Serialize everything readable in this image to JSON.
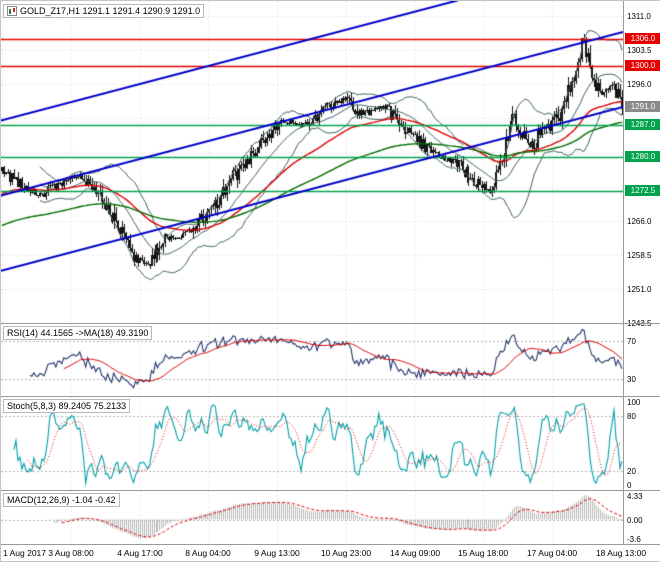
{
  "window": {
    "title": "GOLD_Z17,H1 1291.1 1291.4 1290.9 1291.0"
  },
  "colors": {
    "background": "#ffffff",
    "grid": "#d6d6d6",
    "separator": "#9a9a9a",
    "candle": "#161616",
    "bollinger": "#3a6060",
    "ma_fast": "#dd0000",
    "ma_slow": "#007000",
    "channel_line": "#0000c8",
    "resistance_line": "#e60000",
    "support_line": "#00a24c",
    "current_price_badge": "#8a8a8a",
    "rsi_line": "#24356b",
    "rsi_ma_line": "#dd0000",
    "stoch_main_line": "#00a1a8",
    "stoch_signal_line": "#dd0000",
    "macd_histogram": "#b9b9b9",
    "macd_signal_line": "#dd0000",
    "level_line": "#b5b5b5",
    "axis_text": "#000000"
  },
  "chart_data": {
    "type": "candlestick",
    "symbol": "GOLD_Z17",
    "timeframe": "H1",
    "ohlc_last": {
      "open": 1291.1,
      "high": 1291.4,
      "low": 1290.9,
      "close": 1291.0
    },
    "bars": 312,
    "y_range": [
      1243.5,
      1314.3
    ],
    "price_path": [
      [
        0.0,
        1277.0
      ],
      [
        0.03,
        1274.0
      ],
      [
        0.06,
        1271.5
      ],
      [
        0.09,
        1274.0
      ],
      [
        0.125,
        1276.0
      ],
      [
        0.16,
        1272.0
      ],
      [
        0.185,
        1265.0
      ],
      [
        0.21,
        1258.0
      ],
      [
        0.235,
        1256.5
      ],
      [
        0.26,
        1262.0
      ],
      [
        0.3,
        1263.0
      ],
      [
        0.335,
        1268.0
      ],
      [
        0.37,
        1275.0
      ],
      [
        0.41,
        1282.0
      ],
      [
        0.45,
        1288.0
      ],
      [
        0.49,
        1287.0
      ],
      [
        0.525,
        1291.0
      ],
      [
        0.555,
        1293.0
      ],
      [
        0.58,
        1289.5
      ],
      [
        0.615,
        1291.0
      ],
      [
        0.65,
        1286.5
      ],
      [
        0.69,
        1281.0
      ],
      [
        0.73,
        1279.0
      ],
      [
        0.765,
        1274.5
      ],
      [
        0.79,
        1272.0
      ],
      [
        0.81,
        1281.0
      ],
      [
        0.825,
        1290.0
      ],
      [
        0.85,
        1281.5
      ],
      [
        0.875,
        1286.0
      ],
      [
        0.9,
        1289.0
      ],
      [
        0.925,
        1299.0
      ],
      [
        0.938,
        1306.0
      ],
      [
        0.952,
        1297.5
      ],
      [
        0.968,
        1294.0
      ],
      [
        0.984,
        1296.5
      ],
      [
        1.0,
        1291.0
      ]
    ],
    "levels": {
      "resistance": [
        1306.0,
        1300.0
      ],
      "support": [
        1287.0,
        1280.0,
        1272.5
      ]
    },
    "channel_lines": [
      {
        "price_left": 1288.0,
        "price_right": 1324.0
      },
      {
        "price_left": 1271.5,
        "price_right": 1307.5
      },
      {
        "price_left": 1255.0,
        "price_right": 1291.0
      }
    ],
    "overlays": {
      "bollinger": [
        20,
        2
      ],
      "ma_fast": 55,
      "ma_slow": 130
    },
    "indicators": {
      "rsi": {
        "period": 14,
        "ma_period": 18,
        "value": 44.1565,
        "ma_value": 49.319
      },
      "stochastic": {
        "params": [
          5,
          8,
          3
        ],
        "value": 89.2405,
        "signal": 75.2133
      },
      "macd": {
        "params": [
          12,
          26,
          9
        ],
        "value": -1.04,
        "signal": -0.42
      }
    }
  },
  "price_axis": {
    "ticks": [
      {
        "label": "1311.0",
        "price": 1311.0
      },
      {
        "label": "1303.5",
        "price": 1303.5
      },
      {
        "label": "1296.0",
        "price": 1296.0
      },
      {
        "label": "1266.0",
        "price": 1266.0
      },
      {
        "label": "1258.5",
        "price": 1258.5
      },
      {
        "label": "1251.0",
        "price": 1251.0
      },
      {
        "label": "1243.5",
        "price": 1243.5
      }
    ],
    "badges": [
      {
        "label": "1306.0",
        "price": 1306.0,
        "type": "resistance"
      },
      {
        "label": "1300.0",
        "price": 1300.0,
        "type": "resistance"
      },
      {
        "label": "1291.0",
        "price": 1291.0,
        "type": "current"
      },
      {
        "label": "1287.0",
        "price": 1287.0,
        "type": "support"
      },
      {
        "label": "1280.0",
        "price": 1280.0,
        "type": "support"
      },
      {
        "label": "1272.5",
        "price": 1272.5,
        "type": "support"
      }
    ]
  },
  "time_axis": {
    "labels": [
      "1 Aug 2017",
      "3 Aug 08:00",
      "4 Aug 17:00",
      "8 Aug 04:00",
      "9 Aug 13:00",
      "10 Aug 23:00",
      "14 Aug 09:00",
      "15 Aug 18:00",
      "17 Aug 04:00",
      "18 Aug 13:00"
    ]
  },
  "panels": {
    "rsi": {
      "label": "RSI(14) 44.1565 ->MA(18) 49.3190",
      "axis_labels": [
        {
          "label": "70",
          "value": 70
        },
        {
          "label": "30",
          "value": 30
        }
      ],
      "levels": [
        70,
        30
      ],
      "range": [
        12,
        88
      ]
    },
    "stoch": {
      "label": "Stoch(5,8,3) 89.2405 75.2133",
      "axis_labels": [
        {
          "label": "100",
          "value": 100
        },
        {
          "label": "80",
          "value": 80
        },
        {
          "label": "20",
          "value": 20
        },
        {
          "label": "0",
          "value": 0
        }
      ],
      "levels": [
        80,
        20
      ],
      "range": [
        0,
        100
      ]
    },
    "macd": {
      "label": "MACD(12,26,9) -1.04 -0.42",
      "axis_labels": [
        {
          "label": "4.33",
          "value": 4.33
        },
        {
          "label": "0.00",
          "value": 0.0
        },
        {
          "label": "-3.6",
          "value": -3.6
        }
      ],
      "levels": [
        0
      ],
      "range": [
        4.9,
        -4.2
      ]
    }
  }
}
